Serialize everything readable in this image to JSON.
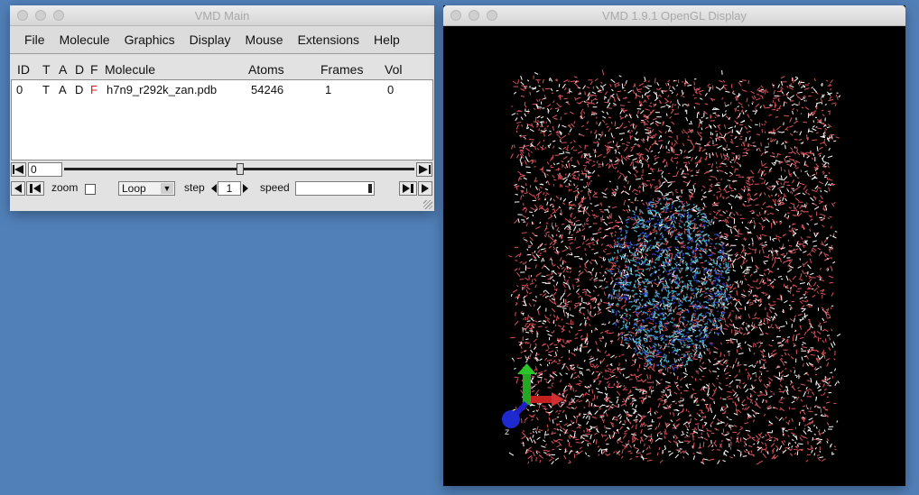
{
  "main_window": {
    "title": "VMD Main",
    "menu": [
      "File",
      "Molecule",
      "Graphics",
      "Display",
      "Mouse",
      "Extensions",
      "Help"
    ],
    "columns": {
      "id": "ID",
      "t": "T",
      "a": "A",
      "d": "D",
      "f": "F",
      "molecule": "Molecule",
      "atoms": "Atoms",
      "frames": "Frames",
      "vol": "Vol"
    },
    "molecules": [
      {
        "id": "0",
        "t": "T",
        "a": "A",
        "d": "D",
        "f": "F",
        "name": "h7n9_r292k_zan.pdb",
        "atoms": "54246",
        "frames": "1",
        "vol": "0"
      }
    ],
    "animation": {
      "frame_value": "0",
      "zoom_label": "zoom",
      "loop_mode": "Loop",
      "step_label": "step",
      "step_value": "1",
      "speed_label": "speed"
    }
  },
  "display_window": {
    "title": "VMD 1.9.1 OpenGL Display",
    "axes": {
      "x": "x",
      "y": "y",
      "z": "z"
    },
    "colors": {
      "background": "#000000",
      "water_red": "#d9535b",
      "water_white": "#ffffff",
      "protein_cyan": "#4fb0c8",
      "protein_blue": "#3040c0",
      "axis_x": "#c42020",
      "axis_y": "#22a822",
      "axis_z": "#2020c8"
    }
  }
}
